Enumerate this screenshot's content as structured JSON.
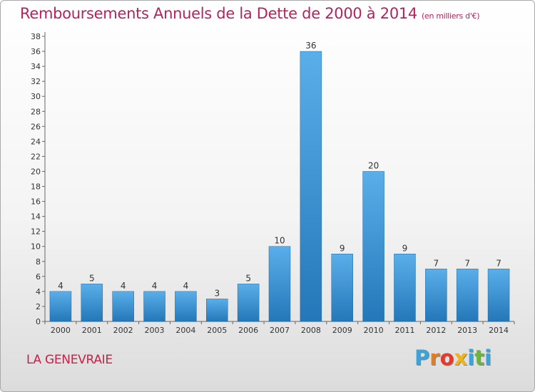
{
  "header": {
    "title": "Remboursements Annuels de la Dette de 2000 à 2014",
    "subtitle": "(en milliers d'€)"
  },
  "footer": {
    "commune": "LA GENEVRAIE",
    "logo_text": "Proxiti",
    "logo_colors": [
      "#3aa3d8",
      "#e57c1f",
      "#e23b2e",
      "#f0b41a",
      "#3aa3d8",
      "#6db33f",
      "#3aa3d8"
    ]
  },
  "chart_data": {
    "type": "bar",
    "categories": [
      "2000",
      "2001",
      "2002",
      "2003",
      "2004",
      "2005",
      "2006",
      "2007",
      "2008",
      "2009",
      "2010",
      "2011",
      "2012",
      "2013",
      "2014"
    ],
    "values": [
      4,
      5,
      4,
      4,
      4,
      3,
      5,
      10,
      36,
      9,
      20,
      9,
      7,
      7,
      7
    ],
    "yticks": [
      0,
      2,
      4,
      6,
      8,
      10,
      12,
      14,
      16,
      18,
      20,
      22,
      24,
      26,
      28,
      30,
      32,
      34,
      36,
      38
    ],
    "ylim": [
      0,
      38
    ],
    "grid": false,
    "bar_color_top": "#5aafea",
    "bar_color_bottom": "#2477b8"
  }
}
